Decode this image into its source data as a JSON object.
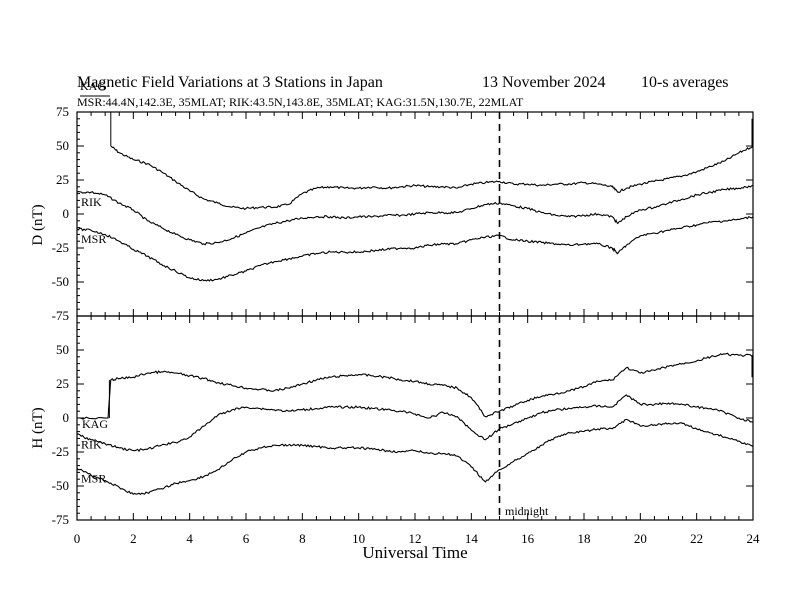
{
  "header": {
    "title": "Magnetic Field Variations at 3 Stations in Japan",
    "date": "13 November 2024",
    "averaging": "10-s averages",
    "stations_line": "MSR:44.4N,142.3E, 35MLAT;  RIK:43.5N,143.8E, 35MLAT;  KAG:31.5N,130.7E, 22MLAT",
    "overlay_label": "KAG"
  },
  "chart_data": [
    {
      "type": "line",
      "ylabel": "D (nT)",
      "ylim": [
        -75,
        75
      ],
      "yticks": [
        75,
        50,
        25,
        0,
        -25,
        -50,
        -75
      ],
      "xlim": [
        0,
        24
      ],
      "series": [
        {
          "name": "KAG",
          "x": [
            0,
            0.6,
            1.15,
            1.2,
            1.5,
            2,
            2.5,
            3,
            3.5,
            4,
            4.5,
            5,
            5.5,
            6,
            6.5,
            7,
            7.5,
            8,
            8.5,
            9,
            9.5,
            10,
            10.5,
            11,
            11.5,
            12,
            12.5,
            13,
            13.5,
            14,
            14.5,
            15,
            15.5,
            16,
            16.5,
            17,
            17.5,
            18,
            18.5,
            19,
            19.2,
            19.5,
            20,
            20.5,
            21,
            21.5,
            22,
            22.5,
            23,
            23.5,
            24
          ],
          "y": [
            null,
            null,
            null,
            50,
            45,
            40,
            37,
            31,
            24,
            17,
            11,
            8,
            5,
            4,
            5,
            5,
            7,
            15,
            19,
            20,
            19,
            19,
            20,
            19,
            20,
            21,
            20,
            20,
            19,
            22,
            23,
            24,
            22,
            22,
            21,
            22,
            22,
            23,
            22,
            20,
            16,
            19,
            22,
            24,
            26,
            28,
            31,
            35,
            39,
            45,
            50
          ]
        },
        {
          "name": "RIK",
          "x": [
            0,
            0.5,
            1,
            1.5,
            2,
            2.5,
            3,
            3.5,
            4,
            4.5,
            5,
            5.5,
            6,
            6.5,
            7,
            7.5,
            8,
            8.5,
            9,
            9.5,
            10,
            10.5,
            11,
            11.5,
            12,
            12.5,
            13,
            13.5,
            14,
            14.5,
            15,
            15.5,
            16,
            16.5,
            17,
            17.5,
            18,
            18.5,
            19,
            19.2,
            19.5,
            20,
            20.5,
            21,
            21.5,
            22,
            22.5,
            23,
            23.5,
            24
          ],
          "y": [
            16,
            16,
            14,
            8,
            3,
            -5,
            -10,
            -15,
            -19,
            -22,
            -21,
            -18,
            -14,
            -10,
            -7,
            -5,
            -3,
            -2,
            -2,
            -3,
            -2,
            -2,
            -1,
            -1,
            0,
            1,
            1,
            1,
            4,
            7,
            8,
            6,
            4,
            1,
            -1,
            -2,
            -1,
            0,
            -2,
            -7,
            -2,
            3,
            5,
            8,
            11,
            14,
            16,
            18,
            19,
            21
          ]
        },
        {
          "name": "MSR",
          "x": [
            0,
            0.5,
            1,
            1.5,
            2,
            2.5,
            3,
            3.5,
            4,
            4.5,
            5,
            5.5,
            6,
            6.5,
            7,
            7.5,
            8,
            8.5,
            9,
            9.5,
            10,
            10.5,
            11,
            11.5,
            12,
            12.5,
            13,
            13.5,
            14,
            14.5,
            15,
            15.5,
            16,
            16.5,
            17,
            17.5,
            18,
            18.5,
            19,
            19.2,
            19.5,
            20,
            20.5,
            21,
            21.5,
            22,
            22.5,
            23,
            23.5,
            24
          ],
          "y": [
            -11,
            -12,
            -15,
            -20,
            -26,
            -31,
            -37,
            -42,
            -47,
            -49,
            -48,
            -45,
            -42,
            -38,
            -35,
            -33,
            -31,
            -29,
            -28,
            -28,
            -28,
            -27,
            -26,
            -25,
            -25,
            -23,
            -22,
            -22,
            -19,
            -17,
            -16,
            -19,
            -20,
            -21,
            -22,
            -23,
            -22,
            -22,
            -25,
            -29,
            -23,
            -16,
            -14,
            -12,
            -10,
            -8,
            -6,
            -5,
            -4,
            -2
          ]
        }
      ]
    },
    {
      "type": "line",
      "ylabel": "H (nT)",
      "xlabel": "Universal Time",
      "ylim": [
        -75,
        75
      ],
      "yticks": [
        50,
        25,
        0,
        -25,
        -50,
        -75
      ],
      "xlim": [
        0,
        24
      ],
      "xticks": [
        0,
        2,
        4,
        6,
        8,
        10,
        12,
        14,
        16,
        18,
        20,
        22,
        24
      ],
      "series": [
        {
          "name": "KAG",
          "x": [
            0,
            1.1,
            1.2,
            1.5,
            2,
            2.5,
            3,
            3.5,
            4,
            4.5,
            5,
            5.5,
            6,
            6.5,
            7,
            7.5,
            8,
            8.5,
            9,
            9.5,
            10,
            10.5,
            11,
            11.5,
            12,
            12.5,
            13,
            13.5,
            14,
            14.5,
            15,
            15.5,
            16,
            16.5,
            17,
            17.5,
            18,
            18.5,
            19,
            19.5,
            20,
            20.5,
            21,
            21.5,
            22,
            22.5,
            23,
            23.5,
            24
          ],
          "y": [
            0,
            0,
            28,
            29,
            30,
            33,
            34,
            33,
            31,
            29,
            26,
            24,
            22,
            21,
            20,
            22,
            25,
            28,
            30,
            31,
            32,
            31,
            30,
            28,
            27,
            25,
            24,
            22,
            15,
            1,
            5,
            9,
            13,
            16,
            18,
            20,
            23,
            27,
            28,
            37,
            33,
            35,
            38,
            40,
            42,
            45,
            47,
            46,
            46
          ]
        },
        {
          "name": "RIK",
          "x": [
            0,
            0.5,
            1,
            1.5,
            2,
            2.5,
            3,
            3.5,
            4,
            4.5,
            5,
            5.5,
            6,
            6.5,
            7,
            7.5,
            8,
            8.5,
            9,
            9.5,
            10,
            10.5,
            11,
            11.5,
            12,
            12.5,
            13,
            13.5,
            14,
            14.5,
            15,
            15.5,
            16,
            16.5,
            17,
            17.5,
            18,
            18.5,
            19,
            19.5,
            20,
            20.5,
            21,
            21.5,
            22,
            22.5,
            23,
            23.5,
            24
          ],
          "y": [
            -12,
            -16,
            -19,
            -22,
            -24,
            -23,
            -20,
            -18,
            -14,
            -6,
            2,
            6,
            8,
            7,
            6,
            5,
            6,
            7,
            8,
            8,
            8,
            7,
            6,
            5,
            3,
            0,
            4,
            1,
            -9,
            -16,
            -8,
            -4,
            0,
            4,
            6,
            7,
            8,
            9,
            8,
            17,
            10,
            10,
            11,
            10,
            8,
            7,
            4,
            0,
            -3
          ]
        },
        {
          "name": "MSR",
          "x": [
            0,
            0.5,
            1,
            1.5,
            2,
            2.5,
            3,
            3.5,
            4,
            4.5,
            5,
            5.5,
            6,
            6.5,
            7,
            7.5,
            8,
            8.5,
            9,
            9.5,
            10,
            10.5,
            11,
            11.5,
            12,
            12.5,
            13,
            13.5,
            14,
            14.5,
            15,
            15.5,
            16,
            16.5,
            17,
            17.5,
            18,
            18.5,
            19,
            19.5,
            20,
            20.5,
            21,
            21.5,
            22,
            22.5,
            23,
            23.5,
            24
          ],
          "y": [
            -37,
            -42,
            -46,
            -51,
            -56,
            -55,
            -52,
            -48,
            -46,
            -43,
            -38,
            -31,
            -25,
            -22,
            -20,
            -20,
            -20,
            -21,
            -22,
            -22,
            -22,
            -23,
            -24,
            -25,
            -24,
            -26,
            -26,
            -28,
            -36,
            -47,
            -38,
            -32,
            -26,
            -20,
            -14,
            -11,
            -10,
            -8,
            -8,
            -1,
            -6,
            -5,
            -4,
            -4,
            -8,
            -11,
            -14,
            -17,
            -21
          ]
        }
      ]
    }
  ],
  "annotations": {
    "midnight_label": "midnight",
    "midnight_ut": 15
  }
}
